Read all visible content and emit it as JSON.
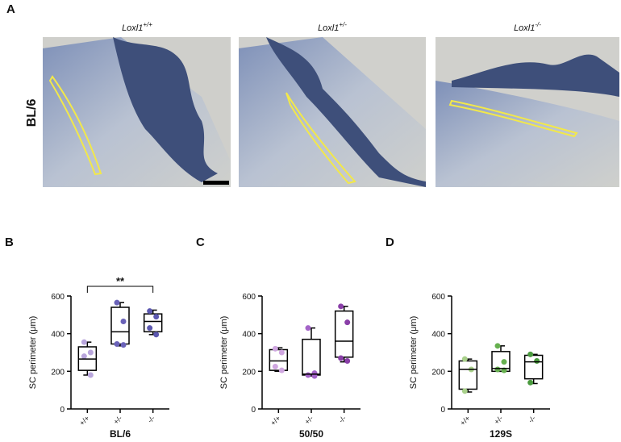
{
  "panel_a": {
    "label": "A",
    "row_label": "BL/6",
    "images": [
      {
        "base": "Loxl1",
        "sup": "+/+"
      },
      {
        "base": "Loxl1",
        "sup": "+/-"
      },
      {
        "base": "Loxl1",
        "sup": "-/-"
      }
    ]
  },
  "chart_data": [
    {
      "type": "box",
      "panel": "B",
      "xlabel": "BL/6",
      "ylabel": "SC perimeter (μm)",
      "annotation": "**",
      "categories": [
        "+/+",
        "+/-",
        "-/-"
      ],
      "ylim": [
        0,
        600
      ],
      "yticks": [
        0,
        200,
        400,
        600
      ],
      "boxes": [
        {
          "min": 180,
          "q1": 205,
          "median": 265,
          "q3": 330,
          "max": 355,
          "points": [
            355,
            300,
            280,
            180
          ],
          "color": "#b9a6dc"
        },
        {
          "min": 335,
          "q1": 345,
          "median": 410,
          "q3": 540,
          "max": 565,
          "points": [
            565,
            465,
            345,
            340
          ],
          "color": "#6a62b8"
        },
        {
          "min": 395,
          "q1": 410,
          "median": 465,
          "q3": 505,
          "max": 525,
          "points": [
            520,
            490,
            430,
            395
          ],
          "color": "#5c58b0"
        }
      ]
    },
    {
      "type": "box",
      "panel": "C",
      "xlabel": "50/50",
      "ylabel": "SC perimeter (μm)",
      "categories": [
        "+/+",
        "+/-",
        "-/-"
      ],
      "ylim": [
        0,
        600
      ],
      "yticks": [
        0,
        200,
        400,
        600
      ],
      "boxes": [
        {
          "min": 200,
          "q1": 205,
          "median": 255,
          "q3": 315,
          "max": 325,
          "points": [
            320,
            300,
            225,
            205
          ],
          "color": "#cfa6e0"
        },
        {
          "min": 175,
          "q1": 180,
          "median": 185,
          "q3": 370,
          "max": 430,
          "points": [
            430,
            190,
            180,
            175
          ],
          "color": "#a464c8"
        },
        {
          "min": 250,
          "q1": 275,
          "median": 360,
          "q3": 520,
          "max": 545,
          "points": [
            545,
            460,
            270,
            255
          ],
          "color": "#8a3fa8"
        }
      ]
    },
    {
      "type": "box",
      "panel": "D",
      "xlabel": "129S",
      "ylabel": "SC perimeter (μm)",
      "categories": [
        "+/+",
        "+/-",
        "-/-"
      ],
      "ylim": [
        0,
        600
      ],
      "yticks": [
        0,
        200,
        400,
        600
      ],
      "boxes": [
        {
          "min": 90,
          "q1": 105,
          "median": 210,
          "q3": 255,
          "max": 265,
          "points": [
            265,
            210,
            95
          ],
          "color": "#a8d08a"
        },
        {
          "min": 200,
          "q1": 200,
          "median": 215,
          "q3": 305,
          "max": 335,
          "points": [
            335,
            250,
            210,
            205
          ],
          "color": "#66b04f"
        },
        {
          "min": 135,
          "q1": 160,
          "median": 250,
          "q3": 285,
          "max": 290,
          "points": [
            290,
            255,
            140
          ],
          "color": "#4a9a3e"
        }
      ]
    }
  ]
}
